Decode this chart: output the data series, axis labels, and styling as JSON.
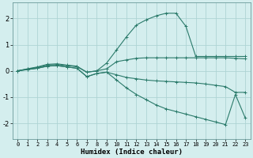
{
  "xlabel": "Humidex (Indice chaleur)",
  "bg_color": "#d4eeee",
  "grid_color": "#aed4d4",
  "line_color": "#2a7a6a",
  "xlim": [
    -0.5,
    23.5
  ],
  "ylim": [
    -2.6,
    2.6
  ],
  "xticks": [
    0,
    1,
    2,
    3,
    4,
    5,
    6,
    7,
    8,
    9,
    10,
    11,
    12,
    13,
    14,
    15,
    16,
    17,
    18,
    19,
    20,
    21,
    22,
    23
  ],
  "yticks": [
    -2,
    -1,
    0,
    1,
    2
  ],
  "lines": [
    {
      "x": [
        0,
        1,
        2,
        3,
        4,
        5,
        6,
        7,
        8,
        9,
        10,
        11,
        12,
        13,
        14,
        15,
        16,
        17,
        18,
        19,
        20,
        21,
        22,
        23
      ],
      "y": [
        0.0,
        0.08,
        0.15,
        0.25,
        0.27,
        0.22,
        0.18,
        -0.05,
        0.0,
        0.3,
        0.8,
        1.3,
        1.75,
        1.95,
        2.1,
        2.2,
        2.2,
        1.7,
        0.55,
        0.55,
        0.55,
        0.55,
        0.55,
        0.55
      ]
    },
    {
      "x": [
        0,
        1,
        2,
        3,
        4,
        5,
        6,
        7,
        8,
        9,
        10,
        11,
        12,
        13,
        14,
        15,
        16,
        17,
        18,
        19,
        20,
        21,
        22,
        23
      ],
      "y": [
        0.0,
        0.07,
        0.13,
        0.22,
        0.24,
        0.2,
        0.16,
        -0.05,
        0.0,
        0.08,
        0.35,
        0.42,
        0.48,
        0.5,
        0.5,
        0.5,
        0.5,
        0.5,
        0.5,
        0.5,
        0.5,
        0.5,
        0.48,
        0.46
      ]
    },
    {
      "x": [
        0,
        1,
        2,
        3,
        4,
        5,
        6,
        7,
        8,
        9,
        10,
        11,
        12,
        13,
        14,
        15,
        16,
        17,
        18,
        19,
        20,
        21,
        22,
        23
      ],
      "y": [
        0.0,
        0.05,
        0.1,
        0.18,
        0.2,
        0.15,
        0.1,
        -0.22,
        -0.1,
        -0.05,
        -0.15,
        -0.25,
        -0.3,
        -0.35,
        -0.38,
        -0.4,
        -0.42,
        -0.44,
        -0.46,
        -0.5,
        -0.55,
        -0.6,
        -0.82,
        -0.82
      ]
    },
    {
      "x": [
        0,
        1,
        2,
        3,
        4,
        5,
        6,
        7,
        8,
        9,
        10,
        11,
        12,
        13,
        14,
        15,
        16,
        17,
        18,
        19,
        20,
        21,
        22,
        23
      ],
      "y": [
        0.0,
        0.05,
        0.1,
        0.18,
        0.2,
        0.15,
        0.1,
        -0.22,
        -0.1,
        -0.05,
        -0.35,
        -0.65,
        -0.9,
        -1.1,
        -1.3,
        -1.45,
        -1.55,
        -1.65,
        -1.75,
        -1.85,
        -1.95,
        -2.05,
        -0.9,
        -1.8
      ]
    }
  ],
  "marker": "+"
}
